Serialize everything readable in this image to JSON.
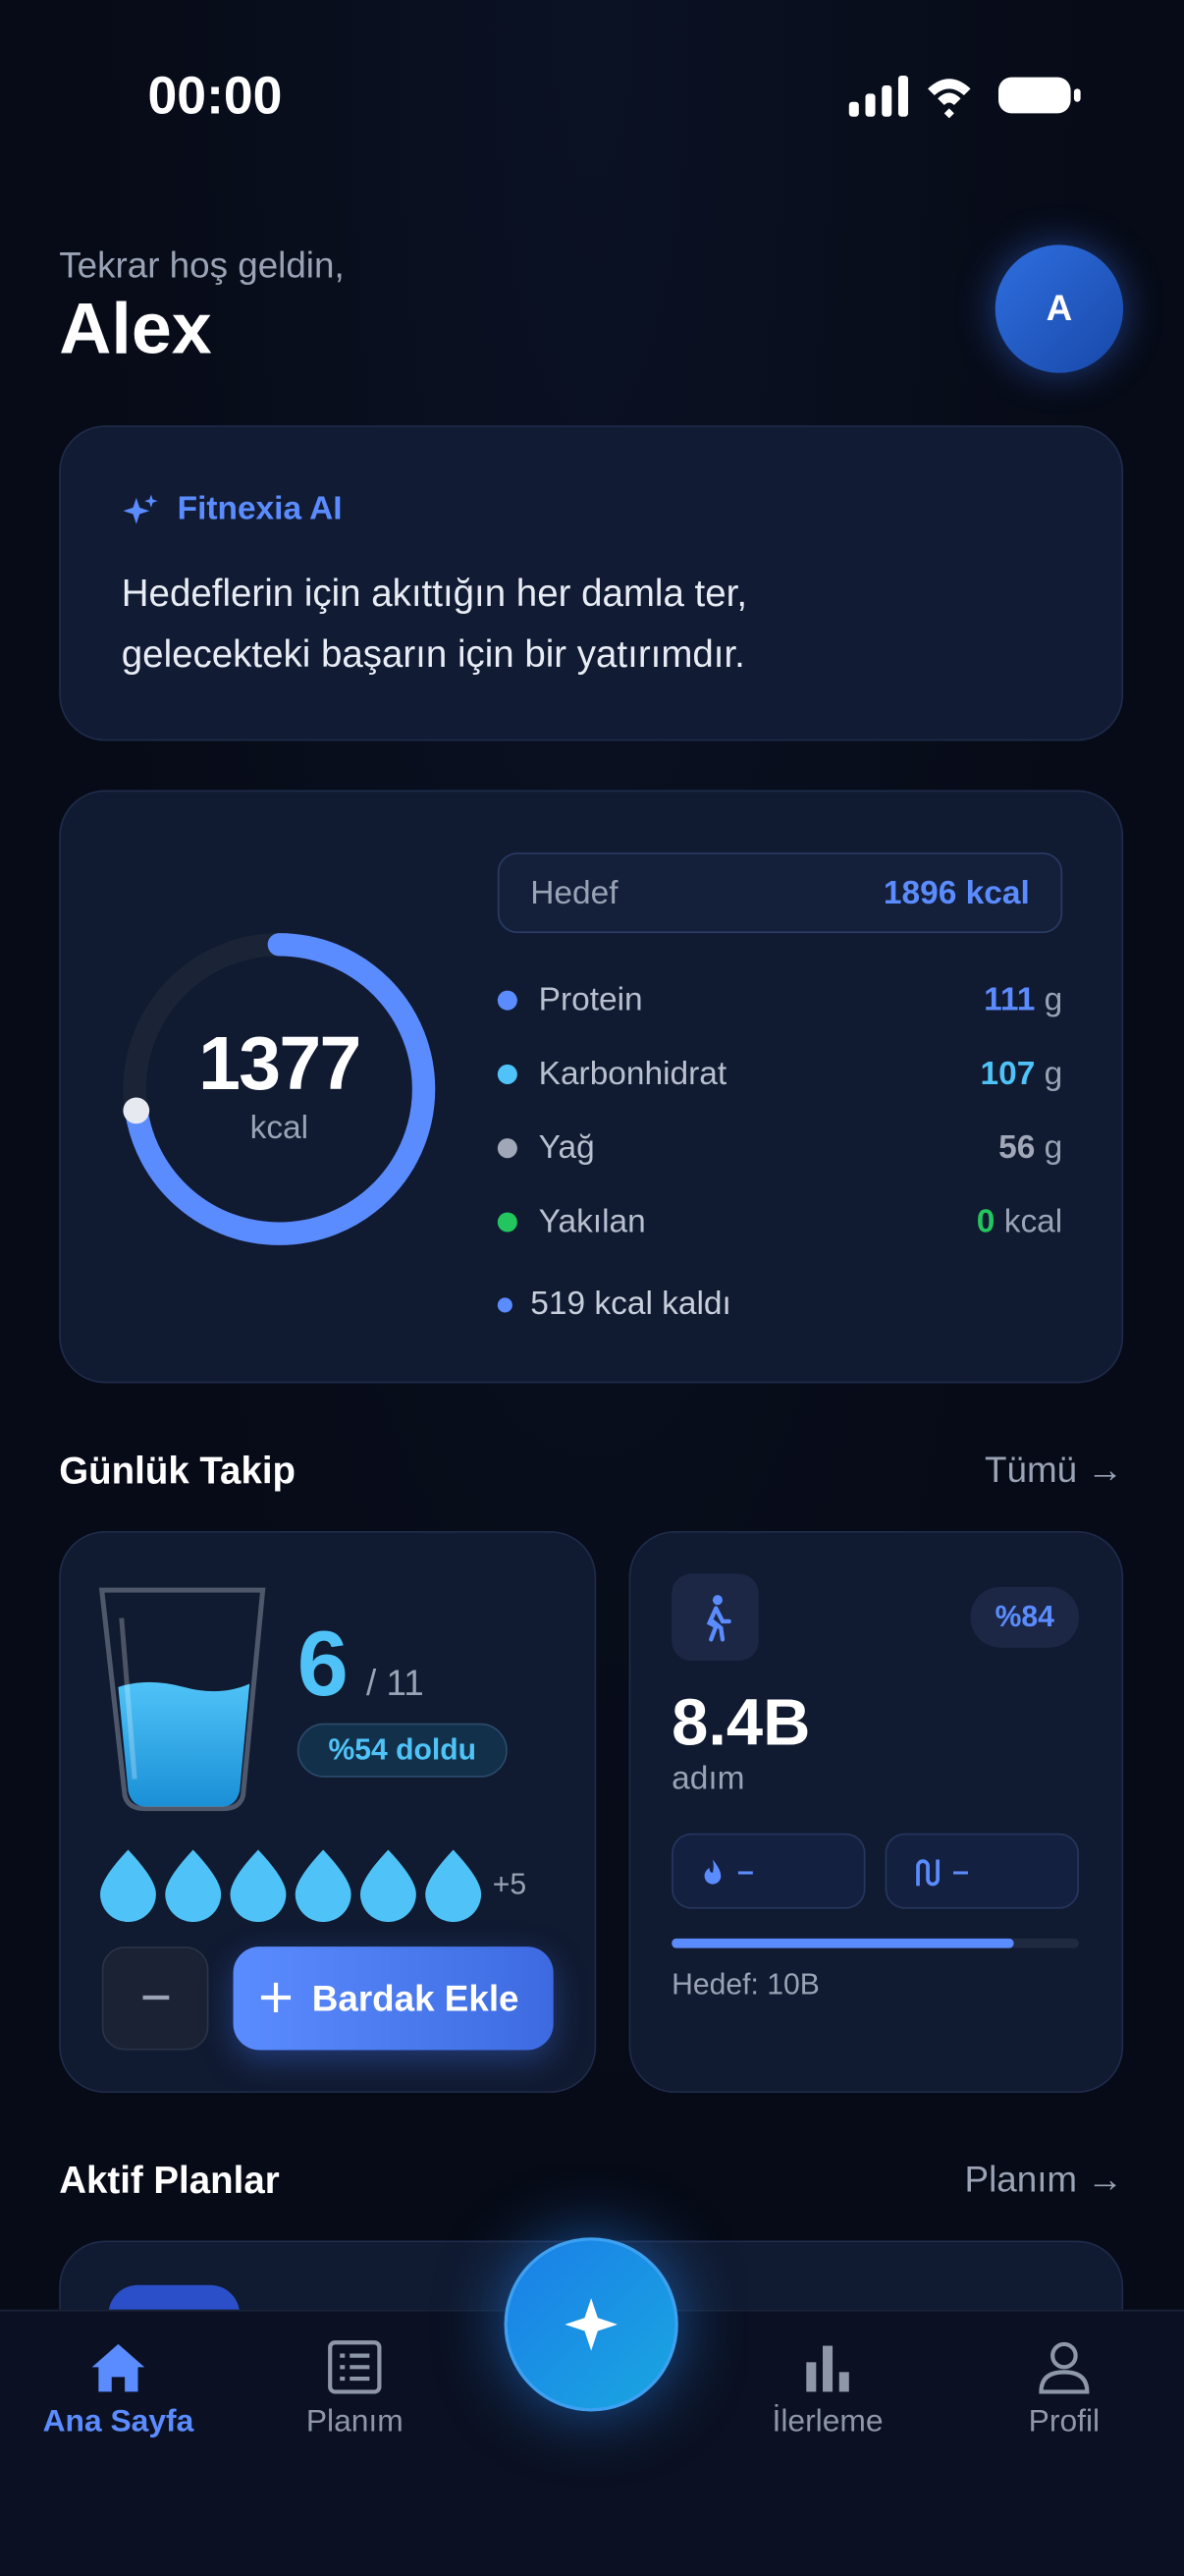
{
  "status_bar": {
    "time": "00:00"
  },
  "header": {
    "greeting": "Tekrar hoş geldin,",
    "name": "Alex",
    "avatar": "A"
  },
  "ai_card": {
    "title": "Fitnexia AI",
    "message": "Hedeflerin için akıttığın her damla ter, gelecekteki başarın için bir yatırımdır."
  },
  "calories": {
    "consumed": 1377,
    "unit": "kcal",
    "goal_label": "Hedef",
    "goal": 1896,
    "goal_unit": "kcal",
    "macros": [
      {
        "name": "Protein",
        "value": 111,
        "unit": "g",
        "color": "#5b8cff"
      },
      {
        "name": "Karbonhidrat",
        "value": 107,
        "unit": "g",
        "color": "#4fc3f7"
      },
      {
        "name": "Yağ",
        "value": 56,
        "unit": "g",
        "color": "#a0a8b8"
      },
      {
        "name": "Yakılan",
        "value": 0,
        "unit": "kcal",
        "color": "#22c55e"
      }
    ],
    "remaining": "519 kcal kaldı"
  },
  "daily": {
    "title": "Günlük Takip",
    "link": "Tümü →",
    "water": {
      "count": 6,
      "total": "/ 11",
      "fill": "%54 doldu",
      "extra": "+5",
      "add": "Bardak Ekle"
    },
    "steps": {
      "percent": {
        "value": 84,
        "label": "%84"
      },
      "value": "8.4B",
      "unit": "adım",
      "calories": "–",
      "distance": "–",
      "goal": "Hedef: 10B"
    }
  },
  "plans": {
    "title": "Aktif Planlar",
    "link": "Planım →"
  },
  "nav": [
    "Ana Sayfa",
    "Planım",
    "İlerleme",
    "Profil"
  ]
}
